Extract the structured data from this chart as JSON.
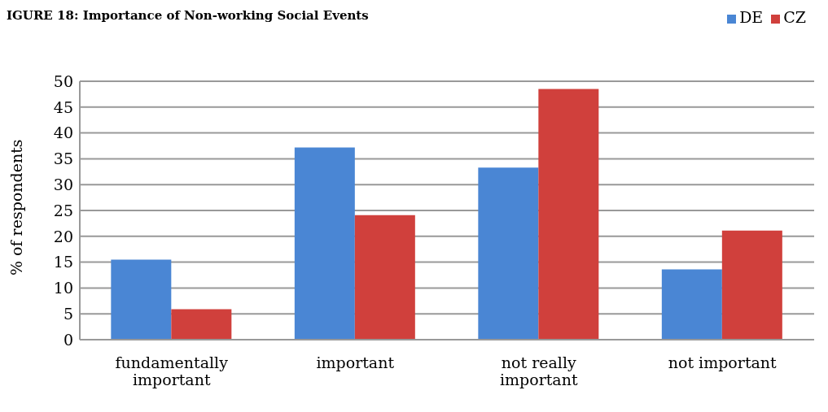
{
  "chart_data": {
    "type": "bar",
    "title": "IGURE 18: Importance of Non-working Social Events",
    "ylabel": "% of respondents",
    "categories": [
      "fundamentally important",
      "important",
      "not really important",
      "not important"
    ],
    "series": [
      {
        "name": "DE",
        "color": "#4a86d4",
        "values": [
          15.5,
          37.2,
          33.3,
          13.6
        ]
      },
      {
        "name": "CZ",
        "color": "#d0403c",
        "values": [
          5.9,
          24.1,
          48.5,
          21.1
        ]
      }
    ],
    "ylim": [
      0,
      50
    ],
    "yticks": [
      0,
      5,
      10,
      15,
      20,
      25,
      30,
      35,
      40,
      45,
      50
    ],
    "grid": "y",
    "legend": "top right"
  }
}
